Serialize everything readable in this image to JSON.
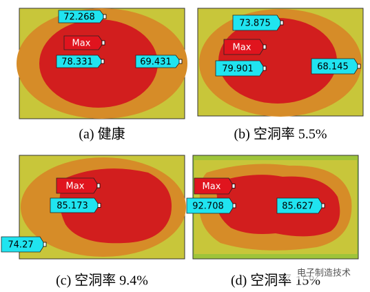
{
  "panels": [
    {
      "caption": "(a)  健康",
      "max": "Max",
      "labels": [
        "72.268",
        "78.331",
        "69.431"
      ]
    },
    {
      "caption": "(b)  空洞率 5.5%",
      "max": "Max",
      "labels": [
        "73.875",
        "79.901",
        "68.145"
      ]
    },
    {
      "caption": "(c)  空洞率 9.4%",
      "max": "Max",
      "labels": [
        "85.173",
        "74.27"
      ]
    },
    {
      "caption": "(d)  空洞率 15%",
      "max": "Max",
      "labels": [
        "92.708",
        "85.627"
      ]
    }
  ],
  "watermark": "电子制造技术"
}
